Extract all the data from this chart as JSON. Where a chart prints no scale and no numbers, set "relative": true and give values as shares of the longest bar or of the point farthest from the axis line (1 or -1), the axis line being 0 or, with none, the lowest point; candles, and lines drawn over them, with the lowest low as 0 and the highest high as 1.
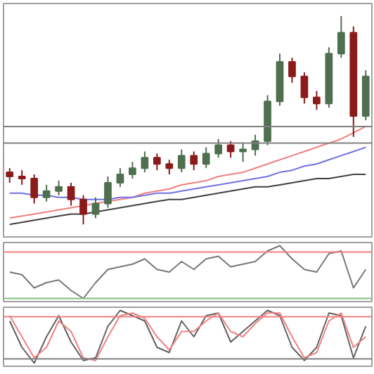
{
  "chart_data": [
    {
      "type": "candlestick",
      "relative": true,
      "categories": [
        null,
        null,
        null,
        null,
        null,
        null,
        null,
        null,
        null,
        null,
        null,
        null,
        null,
        null,
        null,
        null,
        null,
        null,
        null,
        null,
        null,
        null,
        null,
        null,
        null,
        null,
        null,
        null,
        null,
        null
      ],
      "ohlc": [
        [
          0.25,
          0.27,
          0.2,
          0.23
        ],
        [
          0.23,
          0.26,
          0.19,
          0.22
        ],
        [
          0.22,
          0.24,
          0.1,
          0.13
        ],
        [
          0.13,
          0.19,
          0.11,
          0.16
        ],
        [
          0.16,
          0.21,
          0.14,
          0.18
        ],
        [
          0.18,
          0.2,
          0.09,
          0.12
        ],
        [
          0.12,
          0.14,
          0.0,
          0.05
        ],
        [
          0.05,
          0.13,
          0.03,
          0.1
        ],
        [
          0.1,
          0.23,
          0.08,
          0.2
        ],
        [
          0.2,
          0.27,
          0.18,
          0.24
        ],
        [
          0.24,
          0.3,
          0.22,
          0.27
        ],
        [
          0.27,
          0.35,
          0.25,
          0.32
        ],
        [
          0.32,
          0.34,
          0.26,
          0.29
        ],
        [
          0.29,
          0.31,
          0.24,
          0.27
        ],
        [
          0.27,
          0.36,
          0.25,
          0.33
        ],
        [
          0.33,
          0.35,
          0.26,
          0.29
        ],
        [
          0.29,
          0.37,
          0.27,
          0.34
        ],
        [
          0.34,
          0.41,
          0.32,
          0.38
        ],
        [
          0.38,
          0.4,
          0.32,
          0.35
        ],
        [
          0.35,
          0.39,
          0.3,
          0.36
        ],
        [
          0.36,
          0.43,
          0.33,
          0.4
        ],
        [
          0.4,
          0.62,
          0.38,
          0.59
        ],
        [
          0.59,
          0.82,
          0.57,
          0.78
        ],
        [
          0.78,
          0.8,
          0.68,
          0.71
        ],
        [
          0.71,
          0.73,
          0.58,
          0.61
        ],
        [
          0.61,
          0.64,
          0.55,
          0.58
        ],
        [
          0.58,
          0.85,
          0.56,
          0.82
        ],
        [
          0.82,
          1.0,
          0.8,
          0.92
        ],
        [
          0.92,
          0.95,
          0.42,
          0.52
        ],
        [
          0.52,
          0.74,
          0.5,
          0.71
        ]
      ],
      "colors": [
        "#8b1a1a",
        "#8b1a1a",
        "#8b1a1a",
        "#4f6f4f",
        "#4f6f4f",
        "#8b1a1a",
        "#8b1a1a",
        "#4f6f4f",
        "#4f6f4f",
        "#4f6f4f",
        "#4f6f4f",
        "#4f6f4f",
        "#8b1a1a",
        "#8b1a1a",
        "#4f6f4f",
        "#8b1a1a",
        "#4f6f4f",
        "#4f6f4f",
        "#8b1a1a",
        "#4f6f4f",
        "#4f6f4f",
        "#4f6f4f",
        "#4f6f4f",
        "#8b1a1a",
        "#8b1a1a",
        "#8b1a1a",
        "#4f6f4f",
        "#4f6f4f",
        "#8b1a1a",
        "#4f6f4f"
      ],
      "series": [
        {
          "type": "line",
          "color": "#f08080",
          "values": [
            0.03,
            0.04,
            0.05,
            0.06,
            0.07,
            0.08,
            0.09,
            0.1,
            0.11,
            0.12,
            0.13,
            0.15,
            0.16,
            0.17,
            0.19,
            0.2,
            0.21,
            0.23,
            0.24,
            0.25,
            0.27,
            0.29,
            0.31,
            0.33,
            0.35,
            0.37,
            0.39,
            0.41,
            0.44,
            0.47
          ]
        },
        {
          "type": "line",
          "color": "#7070e0",
          "values": [
            0.15,
            0.15,
            0.14,
            0.14,
            0.13,
            0.13,
            0.12,
            0.12,
            0.12,
            0.13,
            0.13,
            0.14,
            0.15,
            0.15,
            0.16,
            0.17,
            0.18,
            0.19,
            0.2,
            0.21,
            0.22,
            0.23,
            0.25,
            0.26,
            0.28,
            0.29,
            0.31,
            0.33,
            0.35,
            0.37
          ]
        },
        {
          "type": "line",
          "color": "#404040",
          "values": [
            0.0,
            0.01,
            0.02,
            0.03,
            0.04,
            0.05,
            0.05,
            0.06,
            0.07,
            0.08,
            0.09,
            0.1,
            0.11,
            0.12,
            0.12,
            0.13,
            0.14,
            0.15,
            0.16,
            0.17,
            0.18,
            0.18,
            0.19,
            0.2,
            0.21,
            0.22,
            0.22,
            0.23,
            0.24,
            0.24
          ]
        }
      ],
      "ref_lines": [
        {
          "axis": "y",
          "value": 0.47,
          "color": "#808080"
        },
        {
          "axis": "y",
          "value": 0.39,
          "color": "#808080"
        }
      ],
      "tick_labels": false,
      "grid": false
    },
    {
      "type": "line",
      "relative": true,
      "categories": [
        null,
        null,
        null,
        null,
        null,
        null,
        null,
        null,
        null,
        null,
        null,
        null,
        null,
        null,
        null,
        null,
        null,
        null,
        null,
        null,
        null,
        null,
        null,
        null,
        null,
        null,
        null,
        null,
        null,
        null
      ],
      "series": [
        {
          "color": "#777777",
          "values": [
            0.5,
            0.45,
            0.2,
            0.3,
            0.35,
            0.15,
            0.0,
            0.3,
            0.55,
            0.6,
            0.65,
            0.75,
            0.55,
            0.5,
            0.7,
            0.55,
            0.75,
            0.8,
            0.6,
            0.65,
            0.7,
            0.9,
            1.0,
            0.75,
            0.55,
            0.5,
            0.85,
            0.9,
            0.2,
            0.55
          ]
        }
      ],
      "ref_lines": [
        {
          "axis": "y",
          "value": 0.88,
          "color": "#f08080"
        },
        {
          "axis": "y",
          "value": 0.0,
          "color": "#80c080"
        }
      ],
      "tick_labels": false,
      "grid": false
    },
    {
      "type": "line",
      "relative": true,
      "categories": [
        null,
        null,
        null,
        null,
        null,
        null,
        null,
        null,
        null,
        null,
        null,
        null,
        null,
        null,
        null,
        null,
        null,
        null,
        null,
        null,
        null,
        null,
        null,
        null,
        null,
        null,
        null,
        null,
        null,
        null
      ],
      "series": [
        {
          "color": "#606060",
          "values": [
            0.8,
            0.3,
            0.0,
            0.5,
            0.9,
            0.4,
            0.05,
            0.1,
            0.7,
            1.0,
            0.9,
            0.8,
            0.3,
            0.2,
            0.8,
            0.5,
            0.9,
            0.95,
            0.4,
            0.6,
            0.8,
            1.0,
            0.9,
            0.3,
            0.05,
            0.3,
            0.95,
            0.9,
            0.1,
            0.7
          ]
        },
        {
          "color": "#f08080",
          "values": [
            0.9,
            0.5,
            0.1,
            0.3,
            0.8,
            0.6,
            0.1,
            0.05,
            0.5,
            0.9,
            0.95,
            0.85,
            0.5,
            0.25,
            0.6,
            0.6,
            0.8,
            0.95,
            0.6,
            0.5,
            0.75,
            0.95,
            0.95,
            0.5,
            0.1,
            0.2,
            0.8,
            0.95,
            0.3,
            0.5
          ]
        }
      ],
      "ref_lines": [
        {
          "axis": "y",
          "value": 0.88,
          "color": "#f08080"
        },
        {
          "axis": "y",
          "value": 0.08,
          "color": "#808080"
        }
      ],
      "tick_labels": false,
      "grid": false
    }
  ]
}
